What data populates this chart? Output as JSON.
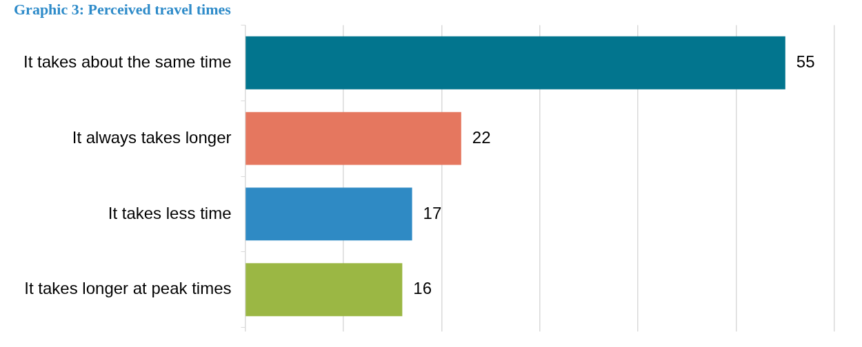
{
  "chart_data": {
    "type": "bar",
    "orientation": "horizontal",
    "title": "Graphic 3: Perceived travel times",
    "categories": [
      "It takes about the same time",
      "It always takes longer",
      "It takes less time",
      "It takes longer at peak times"
    ],
    "values": [
      55,
      22,
      17,
      16
    ],
    "colors": [
      "#02758e",
      "#e5775f",
      "#2f8ac4",
      "#9bb744"
    ],
    "xlim": [
      0,
      60
    ],
    "xticks": [
      {
        "value": 0,
        "label": null
      },
      {
        "value": 10,
        "label": null
      },
      {
        "value": 20,
        "label": null
      },
      {
        "value": 30,
        "label": null
      },
      {
        "value": 40,
        "label": null
      },
      {
        "value": 50,
        "label": null
      },
      {
        "value": 60,
        "label": null
      }
    ],
    "tick_labels": "y",
    "grid": "x",
    "data_labels": true,
    "legend": false
  }
}
